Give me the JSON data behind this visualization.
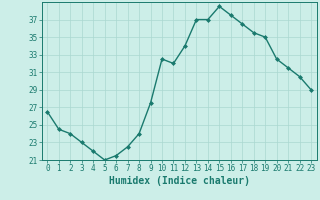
{
  "xlabel": "Humidex (Indice chaleur)",
  "x": [
    0,
    1,
    2,
    3,
    4,
    5,
    6,
    7,
    8,
    9,
    10,
    11,
    12,
    13,
    14,
    15,
    16,
    17,
    18,
    19,
    20,
    21,
    22,
    23
  ],
  "y": [
    26.5,
    24.5,
    24.0,
    23.0,
    22.0,
    21.0,
    21.5,
    22.5,
    24.0,
    27.5,
    32.5,
    32.0,
    34.0,
    37.0,
    37.0,
    38.5,
    37.5,
    36.5,
    35.5,
    35.0,
    32.5,
    31.5,
    30.5,
    29.0
  ],
  "line_color": "#1a7a6e",
  "marker": "D",
  "markersize": 2.0,
  "linewidth": 1.0,
  "bg_color": "#cceee8",
  "grid_color": "#aad8d0",
  "ylim": [
    21,
    39
  ],
  "yticks": [
    21,
    23,
    25,
    27,
    29,
    31,
    33,
    35,
    37
  ],
  "xticks": [
    0,
    1,
    2,
    3,
    4,
    5,
    6,
    7,
    8,
    9,
    10,
    11,
    12,
    13,
    14,
    15,
    16,
    17,
    18,
    19,
    20,
    21,
    22,
    23
  ],
  "tick_fontsize": 5.5,
  "xlabel_fontsize": 7.0,
  "tick_color": "#1a7a6e",
  "axis_color": "#1a7a6e"
}
